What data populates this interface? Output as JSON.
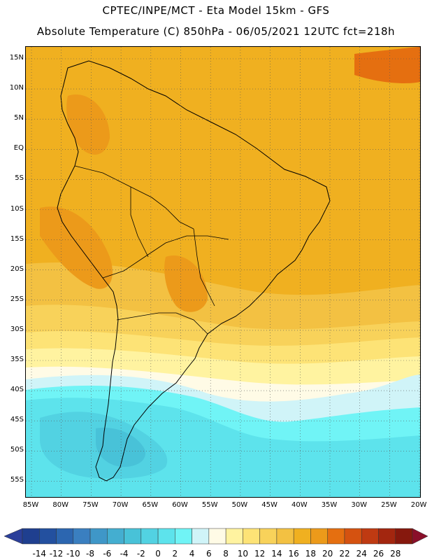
{
  "title_line1": "CPTEC/INPE/MCT -  Eta Model 15km - GFS",
  "title_line2": "Absolute Temperature (C) 850hPa - 06/05/2021 12UTC fct=218h",
  "lat_labels": [
    "15N",
    "10N",
    "5N",
    "EQ",
    "5S",
    "10S",
    "15S",
    "20S",
    "25S",
    "30S",
    "35S",
    "40S",
    "45S",
    "50S",
    "55S"
  ],
  "lon_labels": [
    "85W",
    "80W",
    "75W",
    "70W",
    "65W",
    "60W",
    "55W",
    "50W",
    "45W",
    "40W",
    "35W",
    "30W",
    "25W",
    "20W"
  ],
  "colorbar": {
    "levels": [
      "-14",
      "-12",
      "-10",
      "-8",
      "-6",
      "-4",
      "-2",
      "0",
      "2",
      "4",
      "6",
      "8",
      "10",
      "12",
      "14",
      "16",
      "18",
      "20",
      "22",
      "24",
      "26",
      "28"
    ],
    "colors": [
      "#1f3f8f",
      "#23509f",
      "#2c66b0",
      "#3a7fc0",
      "#3f97c8",
      "#44aed0",
      "#48c2d8",
      "#52d2e2",
      "#5de3ec",
      "#70f4f6",
      "#d0f4f8",
      "#fffbe6",
      "#fff3a0",
      "#fde376",
      "#f8d25a",
      "#f3c142",
      "#f0b020",
      "#ec9a1a",
      "#e56f10",
      "#d55210",
      "#bf3a12",
      "#a3260f",
      "#86180d"
    ],
    "low_color": "#2b3f9a",
    "high_color": "#8a0f2a"
  }
}
